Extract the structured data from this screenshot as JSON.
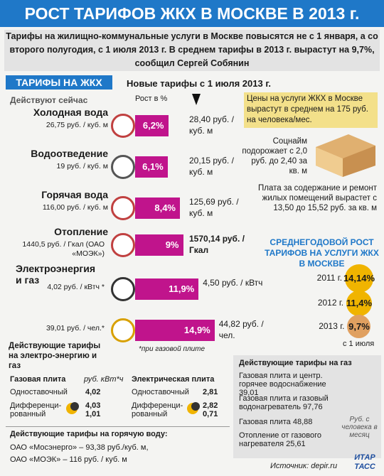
{
  "header": {
    "title": "РОСТ ТАРИФОВ ЖКХ В МОСКВЕ В 2013 г."
  },
  "intro": "Тарифы на жилищно-коммунальные услуги в Москве повысятся не с 1 января, а со второго полугодия, с 1 июля 2013 г. В среднем тарифы в 2013 г. вырастут на 9,7%, сообщил Сергей Собянин",
  "section_label": "ТАРИФЫ НА ЖКХ",
  "new_header": "Новые тарифы с 1 июля 2013 г.",
  "current_header": "Действуют сейчас",
  "growth_header": "Рост в %",
  "rows": [
    {
      "name": "Холодная вода",
      "old": "26,75 руб. / куб. м",
      "new": "28,40 руб. / куб. м",
      "growth": 6.2,
      "growth_label": "6,2%"
    },
    {
      "name": "Водоотведение",
      "old": "19 руб. / куб. м",
      "new": "20,15 руб. / куб. м",
      "growth": 6.1,
      "growth_label": "6,1%"
    },
    {
      "name": "Горячая вода",
      "old": "116,00 руб. / куб. м",
      "new": "125,69 руб. / куб. м",
      "growth": 8.4,
      "growth_label": "8,4%"
    },
    {
      "name": "Отопление",
      "old": "1440,5 руб. / Гкал (ОАО «МОЭК»)",
      "new": "1570,14 руб. / Гкал",
      "growth": 9,
      "growth_label": "9%"
    },
    {
      "name": "Электроэнергия и газ",
      "old": "4,02 руб. / кВтч *",
      "new": "4,50 руб. / кВтч",
      "growth": 11.9,
      "growth_label": "11,9%"
    },
    {
      "old": "39,01 руб. / чел.*",
      "new": "44,82 руб. / чел.",
      "growth": 14.9,
      "growth_label": "14,9%"
    }
  ],
  "footnote": "*при газовой плите",
  "price_box": "Цены на услуги ЖКХ в Москве вырастут в среднем на 175 руб. на человека/мес.",
  "social_rent": "Соцнайм подорожает с 2,0 руб. до 2,40 за кв. м",
  "maintenance": "Плата за содержание и ремонт жилых помещений вырастет с 13,50 до 15,52 руб. за кв. м",
  "annual": {
    "title": "СРЕДНЕГОДОВОЙ РОСТ ТАРИФОВ НА УСЛУГИ ЖКХ В МОСКВЕ",
    "years": [
      {
        "year": "2011 г.",
        "value": 14.14,
        "label": "14,14%"
      },
      {
        "year": "2012 г.",
        "value": 11.4,
        "label": "11,4%"
      },
      {
        "year": "2013 г.",
        "value": 9.7,
        "label": "9,7%"
      }
    ],
    "note": "с 1 июля"
  },
  "electric": {
    "title": "Действующие тарифы на электро-энергию и газ",
    "headers": [
      "Газовая плита",
      "руб. кВт*ч",
      "Электрическая плита"
    ],
    "rows": [
      {
        "gas_name": "Одноставочный",
        "gas_value": "4,02",
        "el_name": "Одноставочный",
        "el_value": "2,81"
      },
      {
        "gas_name": "Дифференци-рованный",
        "gas_value": "4,03 1,01",
        "el_name": "Дифференци-рованный",
        "el_value": "2,82 0,71"
      }
    ]
  },
  "hot_water": {
    "title": "Действующие тарифы на горячую воду:",
    "lines": [
      "ОАО «Мосэнерго» – 93,38 руб./куб. м,",
      "ОАО «МОЭК» – 116 руб. / куб. м"
    ]
  },
  "gas": {
    "title": "Действующие тарифы на газ",
    "items": [
      "Газовая плита и центр. горячее водоснабжение 39,01",
      "Газовая плита и газовый водонагреватель 97,76",
      "Газовая плита 48,88",
      "Отопление от газового нагревателя 25,61"
    ],
    "note": "Руб. с человека в месяц"
  },
  "source": "Источник: depir.ru",
  "logo": "ИТАР ТАСС"
}
